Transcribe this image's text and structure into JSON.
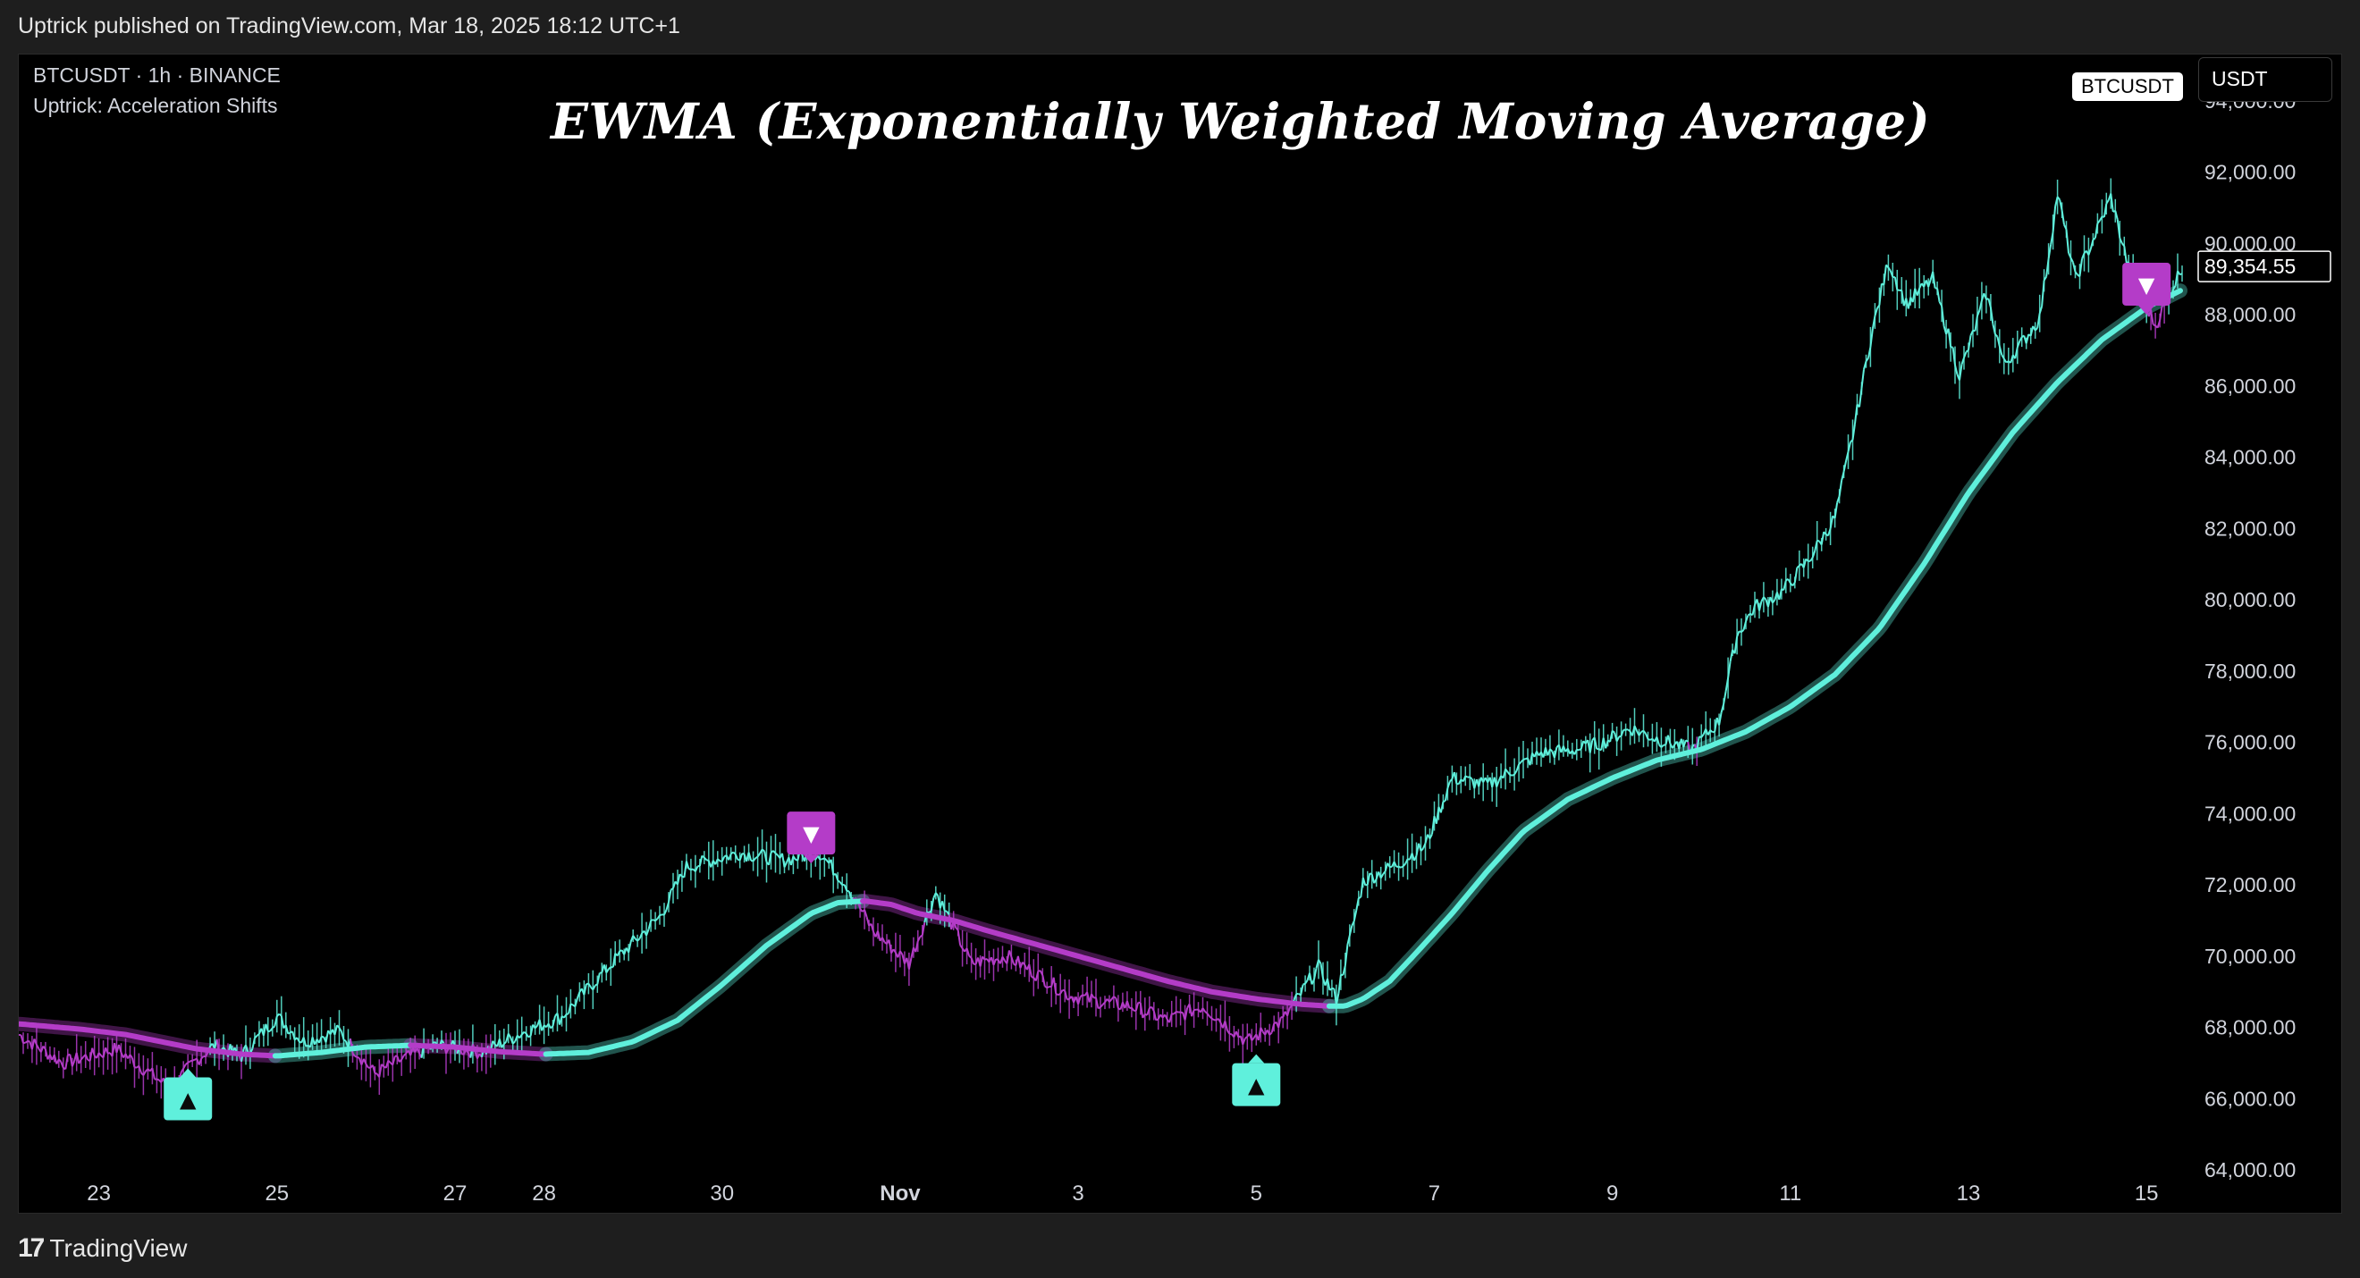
{
  "header": {
    "publish_text": "Uptrick published on TradingView.com, Mar 18, 2025 18:12 UTC+1"
  },
  "legend": {
    "symbol": "BTCUSDT · 1h · BINANCE",
    "indicator": "Uptrick: Acceleration Shifts"
  },
  "toolbar": {
    "symbol_badge": "BTCUSDT",
    "currency": "USDT"
  },
  "footer": {
    "brand": "TradingView",
    "brand_mark": "17"
  },
  "colors": {
    "bull": "#5ff0dc",
    "bear": "#b43cc8",
    "background": "#000000",
    "axis_text": "#d1d4dc"
  },
  "signals": [
    {
      "type": "buy",
      "glyph": "▲",
      "date": "Oct 24",
      "price": 67200
    },
    {
      "type": "sell",
      "glyph": "▼",
      "date": "Oct 31",
      "price": 72200
    },
    {
      "type": "buy",
      "glyph": "▲",
      "date": "Nov 5",
      "price": 67600
    },
    {
      "type": "sell",
      "glyph": "▼",
      "date": "Nov 15",
      "price": 87600
    }
  ],
  "chart_data": {
    "type": "line",
    "title": "EWMA (Exponentially Weighted Moving Average)",
    "xlabel": "",
    "ylabel": "",
    "x_days_range": [
      22.1,
      46.4
    ],
    "ylim": [
      62800,
      95300
    ],
    "y_ticks": [
      64000,
      66000,
      68000,
      70000,
      72000,
      74000,
      76000,
      78000,
      80000,
      82000,
      84000,
      86000,
      88000,
      90000,
      92000,
      94000
    ],
    "y_tick_labels": [
      "64,000.00",
      "66,000.00",
      "68,000.00",
      "70,000.00",
      "72,000.00",
      "74,000.00",
      "76,000.00",
      "78,000.00",
      "80,000.00",
      "82,000.00",
      "84,000.00",
      "86,000.00",
      "88,000.00",
      "90,000.00",
      "92,000.00",
      "94,000.00"
    ],
    "x_ticks": [
      {
        "day": 23,
        "label": "23"
      },
      {
        "day": 25,
        "label": "25"
      },
      {
        "day": 27,
        "label": "27"
      },
      {
        "day": 28,
        "label": "28"
      },
      {
        "day": 30,
        "label": "30"
      },
      {
        "day": 32,
        "label": "Nov"
      },
      {
        "day": 34,
        "label": "3"
      },
      {
        "day": 36,
        "label": "5"
      },
      {
        "day": 38,
        "label": "7"
      },
      {
        "day": 40,
        "label": "9"
      },
      {
        "day": 42,
        "label": "11"
      },
      {
        "day": 44,
        "label": "13"
      },
      {
        "day": 46,
        "label": "15"
      }
    ],
    "last_price": 89354.55,
    "last_price_label": "89,354.55",
    "series": [
      {
        "name": "BTCUSDT price",
        "x": [
          22.1,
          22.6,
          23.2,
          23.8,
          24.1,
          24.3,
          24.6,
          25.0,
          25.3,
          25.7,
          26.1,
          26.4,
          26.8,
          27.3,
          27.8,
          28.2,
          28.8,
          29.3,
          29.6,
          29.9,
          30.2,
          30.7,
          31.1,
          31.4,
          31.7,
          32.1,
          32.4,
          32.8,
          33.2,
          33.6,
          33.9,
          34.3,
          34.6,
          35.0,
          35.4,
          35.9,
          36.3,
          36.7,
          36.9,
          37.2,
          37.6,
          37.9,
          38.2,
          38.6,
          39.2,
          39.6,
          39.9,
          40.2,
          40.5,
          40.9,
          41.2,
          41.4,
          41.6,
          41.9,
          42.2,
          42.5,
          42.7,
          42.9,
          43.1,
          43.3,
          43.6,
          43.9,
          44.2,
          44.4,
          44.6,
          44.8,
          45.0,
          45.2,
          45.4,
          45.6,
          45.8,
          46.1,
          46.4
        ],
        "values": [
          67800,
          67000,
          67400,
          66300,
          67100,
          67500,
          67200,
          68300,
          67600,
          67900,
          66700,
          67100,
          67500,
          67300,
          67900,
          68300,
          69900,
          71100,
          72500,
          72700,
          72900,
          72700,
          72900,
          72000,
          70700,
          69800,
          71800,
          69800,
          70000,
          69400,
          68900,
          68700,
          68600,
          68200,
          68600,
          67600,
          68200,
          69700,
          68800,
          72100,
          72600,
          73100,
          75000,
          74800,
          75700,
          75800,
          76000,
          76400,
          76100,
          75800,
          76600,
          79000,
          79800,
          80200,
          81100,
          82300,
          84600,
          87300,
          89500,
          88300,
          89000,
          86300,
          88600,
          86600,
          87200,
          87900,
          91400,
          89000,
          90100,
          91300,
          89300,
          87700,
          89354.55
        ]
      },
      {
        "name": "EWMA",
        "x": [
          22.1,
          22.8,
          23.3,
          23.7,
          24.1,
          24.6,
          25.0,
          25.5,
          26.0,
          26.5,
          27.0,
          27.5,
          28.0,
          28.5,
          29.0,
          29.5,
          30.0,
          30.5,
          31.0,
          31.3,
          31.6,
          31.9,
          32.2,
          32.6,
          33.0,
          33.5,
          34.0,
          34.5,
          35.0,
          35.5,
          36.0,
          36.5,
          36.8,
          37.0,
          37.2,
          37.5,
          37.8,
          38.2,
          38.6,
          39.0,
          39.5,
          40.0,
          40.5,
          41.0,
          41.5,
          42.0,
          42.5,
          43.0,
          43.5,
          44.0,
          44.5,
          45.0,
          45.5,
          46.0,
          46.4
        ],
        "values": [
          68100,
          67950,
          67800,
          67600,
          67400,
          67250,
          67200,
          67300,
          67450,
          67500,
          67450,
          67320,
          67250,
          67300,
          67600,
          68200,
          69200,
          70300,
          71200,
          71500,
          71550,
          71450,
          71200,
          71000,
          70700,
          70350,
          70000,
          69650,
          69300,
          69000,
          68800,
          68650,
          68600,
          68600,
          68800,
          69300,
          70100,
          71200,
          72400,
          73500,
          74400,
          75000,
          75500,
          75800,
          76300,
          77000,
          77900,
          79200,
          81000,
          83000,
          84700,
          86100,
          87300,
          88200,
          88700
        ]
      }
    ]
  }
}
